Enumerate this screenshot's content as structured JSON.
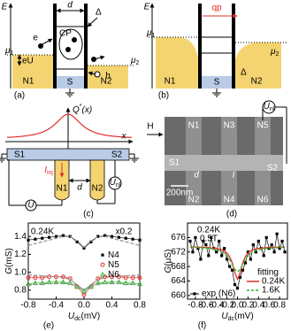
{
  "panel_a": {
    "axis": "E",
    "d": "d",
    "delta": "Δ",
    "mu1": {
      "main": "μ",
      "sub": "1"
    },
    "mu2": {
      "main": "μ",
      "sub": "2"
    },
    "cp": "CP",
    "e": "e",
    "eU": "eU",
    "h": "h",
    "n1": "N1",
    "s": "S",
    "n2": "N2",
    "tag": "(a)"
  },
  "panel_b": {
    "axis": "E",
    "qp": "qp",
    "mu1": {
      "main": "μ",
      "sub": "1"
    },
    "mu2": {
      "main": "μ",
      "sub": "2"
    },
    "delta": "Δ",
    "n1": "N1",
    "s": "S",
    "n2": "N2",
    "tag": "(b)"
  },
  "panel_c": {
    "q": {
      "main": "Q",
      "sup": "*",
      "rest": "(x)"
    },
    "x": "x",
    "s1": "S1",
    "s2": "S2",
    "iinj": {
      "main": "I",
      "sub": "inj"
    },
    "u": "U",
    "n1": "N1",
    "n2": "N2",
    "d": "d",
    "unl": {
      "main": "U",
      "sub": "nl"
    },
    "tag": "(c)"
  },
  "panel_d": {
    "h": "H",
    "unl": {
      "main": "U",
      "sub": "nl"
    },
    "n1": "N1",
    "n3": "N3",
    "n5": "N5",
    "s1": "S1",
    "s2": "S2",
    "d": "d",
    "i": "I",
    "scale": "200nm",
    "n2": "N2",
    "n4": "N4",
    "n6": "N6",
    "tag": "(d)"
  },
  "chart_data": [
    {
      "type": "line",
      "tag": "(e)",
      "ylabel": {
        "main": "G",
        "unit": "(mS)"
      },
      "xlabel": {
        "main": "U",
        "sub": "dc",
        "unit": "(mV)"
      },
      "annotations": [
        "0.24K",
        "x0.2"
      ],
      "x": [
        -0.8,
        -0.7,
        -0.6,
        -0.5,
        -0.4,
        -0.3,
        -0.2,
        -0.1,
        0,
        0.1,
        0.2,
        0.3,
        0.4,
        0.5,
        0.6,
        0.7,
        0.8
      ],
      "xlim": [
        -0.8,
        0.8
      ],
      "ylim": [
        0.7,
        1.55
      ],
      "xticks": [
        -0.8,
        -0.4,
        {
          "value": 0,
          "label": "0.0"
        },
        0.4,
        0.8
      ],
      "yticks": [
        0.8,
        {
          "value": 1,
          "label": "1.0"
        },
        1.2,
        1.4
      ],
      "legend": "center right",
      "series": [
        {
          "name": "N4",
          "color": "#000000",
          "marker": "square",
          "values": [
            1.36,
            1.37,
            1.38,
            1.39,
            1.4,
            1.41,
            1.4,
            1.34,
            1.27,
            1.34,
            1.4,
            1.41,
            1.4,
            1.39,
            1.38,
            1.37,
            1.36
          ]
        },
        {
          "name": "N5",
          "color": "#e0302a",
          "marker": "circle",
          "values": [
            0.94,
            0.94,
            0.94,
            0.95,
            0.95,
            0.95,
            0.93,
            0.84,
            0.75,
            0.84,
            0.93,
            0.95,
            0.95,
            0.95,
            0.94,
            0.94,
            0.94
          ]
        },
        {
          "name": "N6",
          "color": "#2fb52f",
          "marker": "triangle",
          "values": [
            0.87,
            0.88,
            0.88,
            0.89,
            0.89,
            0.89,
            0.88,
            0.84,
            0.79,
            0.84,
            0.88,
            0.89,
            0.89,
            0.89,
            0.88,
            0.88,
            0.87
          ]
        },
        {
          "color": "#999999",
          "dash": true,
          "values": [
            1.3,
            1.32,
            1.34,
            1.36,
            1.38,
            1.4,
            1.4,
            1.35,
            1.28,
            1.35,
            1.4,
            1.4,
            1.38,
            1.36,
            1.34,
            1.32,
            1.3
          ]
        },
        {
          "color": "#999999",
          "dash": true,
          "values": [
            0.97,
            0.965,
            0.96,
            0.955,
            0.95,
            0.94,
            0.92,
            0.86,
            0.8,
            0.86,
            0.92,
            0.94,
            0.95,
            0.955,
            0.96,
            0.965,
            0.97
          ]
        },
        {
          "color": "#999999",
          "dash": true,
          "values": [
            0.86,
            0.865,
            0.87,
            0.875,
            0.88,
            0.88,
            0.87,
            0.84,
            0.81,
            0.84,
            0.87,
            0.88,
            0.88,
            0.875,
            0.87,
            0.865,
            0.86
          ]
        }
      ]
    },
    {
      "type": "line",
      "tag": "(f)",
      "ylabel": {
        "main": "G",
        "unit": "(μS)"
      },
      "xlabel": {
        "main": "U",
        "sub": "dc",
        "unit": "(mV)"
      },
      "annotations": [
        "0.24K",
        "0.5T"
      ],
      "legend_title": "fitting",
      "x": [
        -0.9,
        -0.85,
        -0.8,
        -0.75,
        -0.7,
        -0.65,
        -0.6,
        -0.55,
        -0.5,
        -0.45,
        -0.4,
        -0.35,
        -0.3,
        -0.25,
        -0.2,
        -0.15,
        -0.1,
        -0.05,
        0,
        0.05,
        0.1,
        0.15,
        0.2,
        0.25,
        0.3,
        0.35,
        0.4,
        0.45,
        0.5,
        0.55,
        0.6,
        0.65,
        0.7,
        0.75,
        0.8,
        0.85,
        0.9
      ],
      "xlim": [
        -0.95,
        0.95
      ],
      "ylim": [
        659,
        680
      ],
      "xticks": [
        -0.8,
        -0.6,
        -0.4,
        -0.2,
        {
          "value": 0,
          "label": "0.0"
        },
        0.2,
        0.4,
        0.6,
        0.8
      ],
      "yticks": [
        660,
        664,
        668,
        672,
        676
      ],
      "legend": "lower right",
      "series": [
        {
          "name": "exp (N6)",
          "color": "#000000",
          "marker": "square",
          "values": [
            675,
            672,
            676,
            673,
            670,
            675,
            674,
            671,
            676,
            673,
            672,
            675,
            671,
            673,
            670,
            668,
            667,
            663,
            662,
            665,
            667,
            669,
            672,
            670,
            674,
            672,
            675,
            673,
            671,
            676,
            673,
            674,
            672,
            677,
            673,
            675,
            672
          ]
        },
        {
          "name": "0.24K",
          "color": "#e0302a",
          "values": [
            673.4,
            673.4,
            673.4,
            673.3,
            673.3,
            673.3,
            673.2,
            673.2,
            673.1,
            673.1,
            673.0,
            672.8,
            672.6,
            672.3,
            671.7,
            670.7,
            669.0,
            666.3,
            664.5,
            666.3,
            669.0,
            670.7,
            671.7,
            672.3,
            672.6,
            672.8,
            673.0,
            673.1,
            673.1,
            673.2,
            673.2,
            673.3,
            673.3,
            673.3,
            673.4,
            673.4,
            673.4
          ]
        },
        {
          "name": "1.6K",
          "color": "#2fb52f",
          "dash": true,
          "values": [
            673.3,
            673.3,
            673.3,
            673.2,
            673.2,
            673.1,
            673.1,
            673.0,
            672.9,
            672.8,
            672.6,
            672.4,
            672.1,
            671.6,
            671.0,
            670.0,
            668.6,
            667.2,
            666.5,
            667.2,
            668.6,
            670.0,
            671.0,
            671.6,
            672.1,
            672.4,
            672.6,
            672.8,
            672.9,
            673.0,
            673.1,
            673.1,
            673.2,
            673.2,
            673.3,
            673.3,
            673.3
          ]
        }
      ]
    }
  ]
}
